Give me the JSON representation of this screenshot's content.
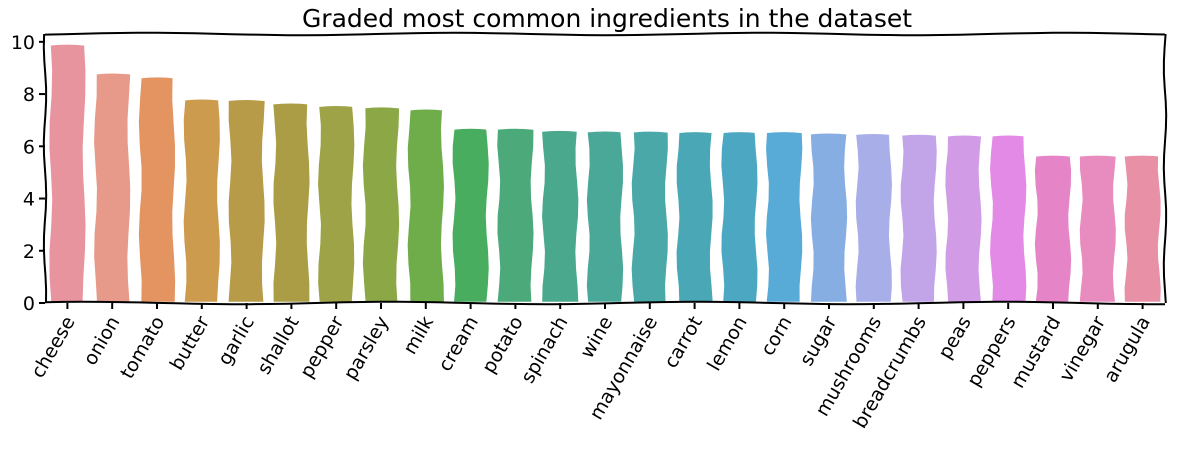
{
  "chart_data": {
    "type": "bar",
    "title": "Graded most common ingredients in the dataset",
    "xlabel": "",
    "ylabel": "",
    "ylim": [
      0,
      10.3
    ],
    "yticks": [
      0,
      2,
      4,
      6,
      8,
      10
    ],
    "ytick_labels": [
      "0",
      "2",
      "4",
      "6",
      "8",
      "10"
    ],
    "grid": false,
    "legend": "none",
    "categories": [
      "cheese",
      "onion",
      "tomato",
      "butter",
      "garlic",
      "shallot",
      "pepper",
      "parsley",
      "milk",
      "cream",
      "potato",
      "spinach",
      "wine",
      "mayonnaise",
      "carrot",
      "lemon",
      "corn",
      "sugar",
      "mushrooms",
      "breadcrumbs",
      "peas",
      "peppers",
      "mustard",
      "vinegar",
      "arugula"
    ],
    "values": [
      9.9,
      8.8,
      8.65,
      7.8,
      7.78,
      7.65,
      7.55,
      7.5,
      7.42,
      6.68,
      6.68,
      6.6,
      6.58,
      6.57,
      6.55,
      6.55,
      6.55,
      6.5,
      6.48,
      6.45,
      6.42,
      6.42,
      5.65,
      5.65,
      5.65
    ],
    "colors": [
      "#e8949e",
      "#e89a8a",
      "#e39461",
      "#cd9b4e",
      "#b89b48",
      "#ab9c46",
      "#9da346",
      "#8ca846",
      "#6fac4a",
      "#49ad60",
      "#4ba97a",
      "#4aa88c",
      "#4aa898",
      "#4aa9a8",
      "#4aa8b6",
      "#4ca8c2",
      "#57abd6",
      "#86aee3",
      "#a7aee8",
      "#c2a4e8",
      "#d29be6",
      "#e38ae6",
      "#e684c8",
      "#e88cc0",
      "#e890a6"
    ]
  }
}
